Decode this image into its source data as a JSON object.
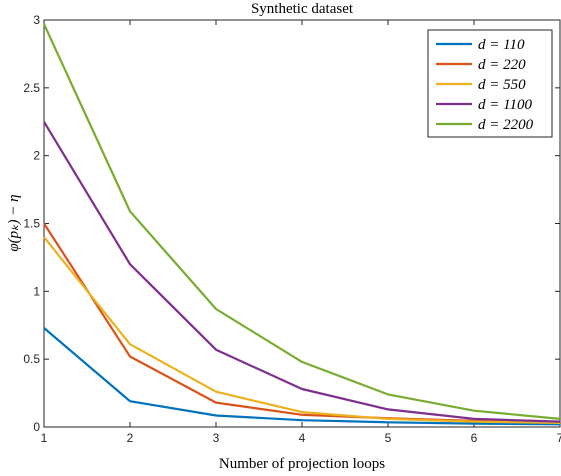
{
  "chart_data": {
    "type": "line",
    "title": "Synthetic dataset",
    "xlabel": "Number of projection loops",
    "ylabel": "φ(p_k) − η",
    "ylabel_display": "φ(pₖ) − η",
    "xlim": [
      1,
      7
    ],
    "ylim": [
      0,
      3
    ],
    "x": [
      1,
      2,
      3,
      4,
      5,
      6,
      7
    ],
    "xticks": [
      "1",
      "2",
      "3",
      "4",
      "5",
      "6",
      "7"
    ],
    "yticks": [
      "0",
      "0.5",
      "1",
      "1.5",
      "2",
      "2.5",
      "3"
    ],
    "grid": false,
    "legend_position": "top-right",
    "series": [
      {
        "name": "d = 110",
        "color": "#0072BD",
        "values": [
          0.73,
          0.19,
          0.085,
          0.05,
          0.035,
          0.025,
          0.02
        ]
      },
      {
        "name": "d = 220",
        "color": "#D95319",
        "values": [
          1.5,
          0.52,
          0.18,
          0.09,
          0.065,
          0.045,
          0.035
        ]
      },
      {
        "name": "d = 550",
        "color": "#EDB120",
        "values": [
          1.4,
          0.61,
          0.26,
          0.11,
          0.06,
          0.04,
          0.03
        ]
      },
      {
        "name": "d = 1100",
        "color": "#7E2F8E",
        "values": [
          2.25,
          1.2,
          0.57,
          0.28,
          0.13,
          0.06,
          0.04
        ]
      },
      {
        "name": "d = 2200",
        "color": "#77AC30",
        "values": [
          2.97,
          1.59,
          0.87,
          0.48,
          0.24,
          0.12,
          0.06
        ]
      }
    ]
  }
}
